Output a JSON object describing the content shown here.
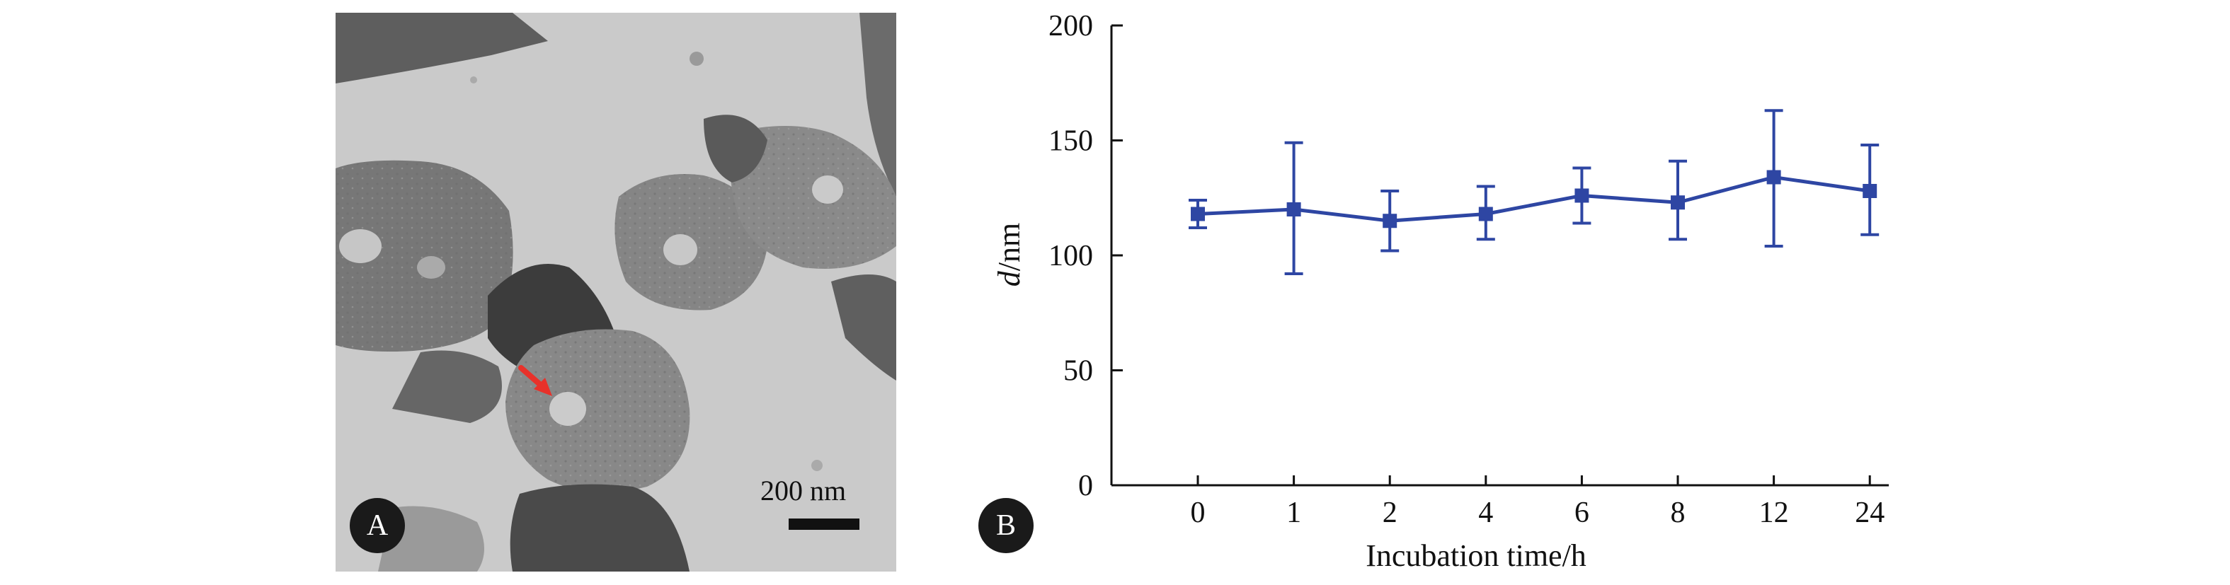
{
  "panel_a": {
    "badge": "A",
    "scale_bar_label": "200 nm",
    "arrow_color": "#e8312a"
  },
  "panel_b": {
    "badge": "B"
  },
  "chart_data": {
    "type": "line",
    "title": "",
    "xlabel": "Incubation time/h",
    "ylabel_italic": "d",
    "ylabel_unit": "/nm",
    "categories": [
      "0",
      "1",
      "2",
      "4",
      "6",
      "8",
      "12",
      "24"
    ],
    "series": [
      {
        "values": [
          118,
          120,
          115,
          118,
          126,
          123,
          134,
          128
        ],
        "error_low": [
          112,
          92,
          102,
          107,
          114,
          107,
          104,
          109
        ],
        "error_high": [
          124,
          149,
          128,
          130,
          138,
          141,
          163,
          148
        ]
      }
    ],
    "ylim": [
      0,
      200
    ],
    "yticks": [
      "0",
      "50",
      "100",
      "150",
      "200"
    ],
    "grid": false,
    "legend": "none",
    "line_color": "#2e46a3"
  }
}
